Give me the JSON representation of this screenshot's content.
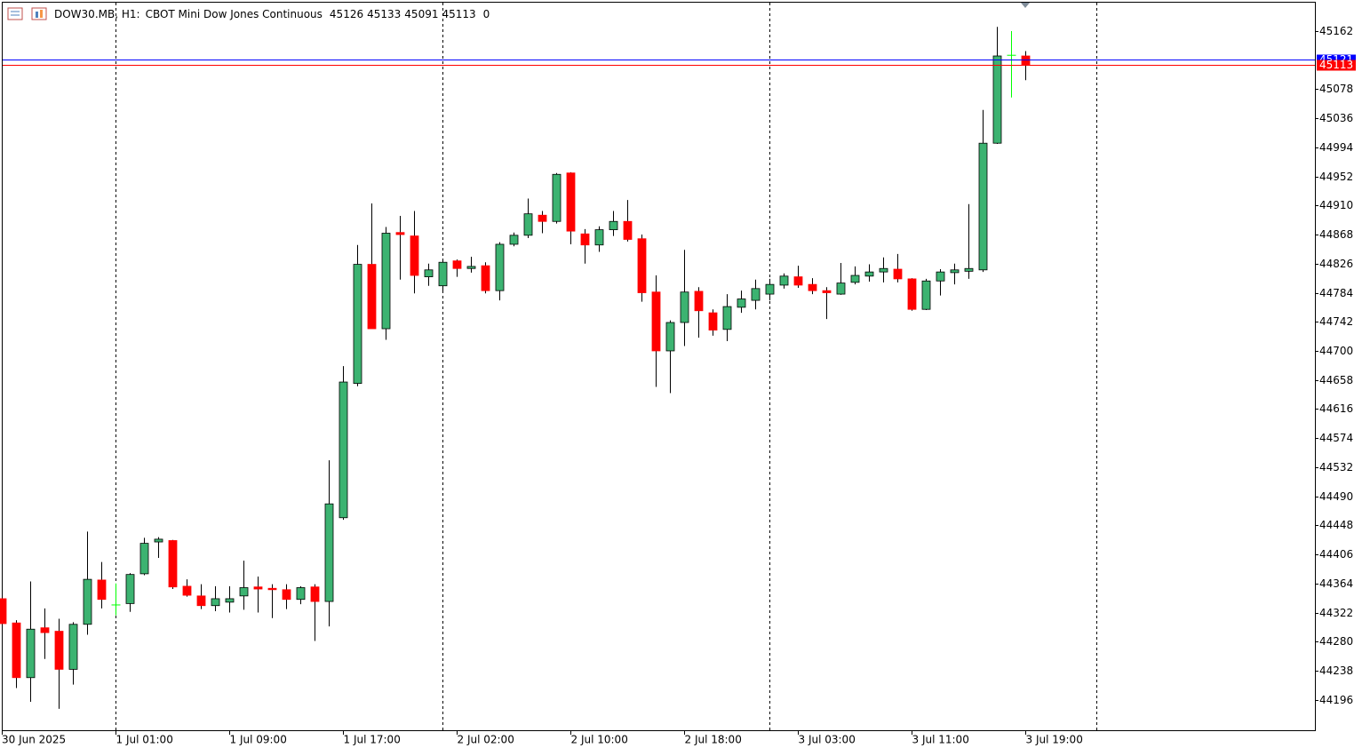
{
  "chart_data": {
    "type": "candlestick",
    "header": {
      "symbol": "DOW30.MB, H1:",
      "description": "CBOT Mini Dow Jones Continuous",
      "ohlc": [
        45126,
        45133,
        45091,
        45113
      ],
      "spread": 0
    },
    "categories": [
      "30 Jun 2025",
      null,
      null,
      null,
      null,
      null,
      null,
      null,
      "1 Jul 01:00",
      null,
      null,
      null,
      null,
      null,
      null,
      null,
      "1 Jul 09:00",
      null,
      null,
      null,
      null,
      null,
      null,
      null,
      "1 Jul 17:00",
      null,
      null,
      null,
      null,
      null,
      null,
      null,
      "2 Jul 02:00",
      null,
      null,
      null,
      null,
      null,
      null,
      null,
      "2 Jul 10:00",
      null,
      null,
      null,
      null,
      null,
      null,
      null,
      "2 Jul 18:00",
      null,
      null,
      null,
      null,
      null,
      null,
      null,
      "3 Jul 03:00",
      null,
      null,
      null,
      null,
      null,
      null,
      null,
      "3 Jul 11:00",
      null,
      null,
      null,
      null,
      null,
      null,
      null,
      "3 Jul 19:00"
    ],
    "open": [
      44342,
      44307,
      44228,
      44300,
      44295,
      44240,
      44305,
      44369,
      44333,
      44335,
      44378,
      44424,
      44426,
      44360,
      44346,
      44332,
      44337,
      44346,
      44359,
      44357,
      44355,
      44341,
      44359,
      44338,
      44459,
      44653,
      44825,
      44732,
      44871,
      44866,
      44807,
      44794,
      44830,
      44819,
      44823,
      44787,
      44854,
      44867,
      44896,
      44887,
      44957,
      44869,
      44853,
      44875,
      44887,
      44862,
      44785,
      44700,
      44741,
      44786,
      44755,
      44731,
      44763,
      44773,
      44782,
      44795,
      44807,
      44796,
      44787,
      44782,
      44799,
      44808,
      44814,
      44818,
      44804,
      44760,
      44801,
      44813,
      44815,
      44817,
      45000,
      45127,
      45126
    ],
    "high": [
      44342,
      44311,
      44367,
      44328,
      44313,
      44308,
      44439,
      44395,
      44364,
      44379,
      44430,
      44431,
      44427,
      44370,
      44363,
      44360,
      44360,
      44397,
      44374,
      44363,
      44363,
      44360,
      44363,
      44542,
      44678,
      44853,
      44913,
      44879,
      44895,
      44902,
      44826,
      44830,
      44832,
      44836,
      44828,
      44857,
      44871,
      44920,
      44902,
      44957,
      44958,
      44876,
      44880,
      44902,
      44918,
      44868,
      44809,
      44744,
      44846,
      44792,
      44760,
      44782,
      44787,
      44803,
      44804,
      44812,
      44823,
      44805,
      44792,
      44827,
      44822,
      44825,
      44835,
      44840,
      44805,
      44804,
      44818,
      44826,
      44912,
      45048,
      45168,
      45162,
      45133
    ],
    "low": [
      44306,
      44213,
      44193,
      44255,
      44183,
      44218,
      44290,
      44328,
      44318,
      44323,
      44376,
      44401,
      44356,
      44345,
      44327,
      44324,
      44322,
      44326,
      44322,
      44314,
      44327,
      44334,
      44281,
      44302,
      44456,
      44649,
      44732,
      44716,
      44803,
      44783,
      44794,
      44785,
      44807,
      44813,
      44783,
      44773,
      44851,
      44863,
      44870,
      44884,
      44854,
      44826,
      44843,
      44866,
      44858,
      44771,
      44648,
      44639,
      44707,
      44719,
      44722,
      44714,
      44755,
      44760,
      44773,
      44790,
      44791,
      44782,
      44746,
      44781,
      44796,
      44800,
      44799,
      44799,
      44758,
      44759,
      44780,
      44796,
      44804,
      44814,
      44999,
      45066,
      45091
    ],
    "close": [
      44306,
      44228,
      44298,
      44293,
      44240,
      44305,
      44370,
      44341,
      44333,
      44377,
      44422,
      44428,
      44359,
      44347,
      44332,
      44342,
      44342,
      44358,
      44356,
      44355,
      44341,
      44358,
      44338,
      44479,
      44655,
      44825,
      44732,
      44870,
      44868,
      44809,
      44817,
      44828,
      44819,
      44822,
      44787,
      44854,
      44867,
      44898,
      44887,
      44955,
      44873,
      44853,
      44875,
      44887,
      44861,
      44784,
      44700,
      44741,
      44785,
      44758,
      44730,
      44764,
      44775,
      44790,
      44796,
      44808,
      44795,
      44787,
      44784,
      44798,
      44809,
      44814,
      44819,
      44804,
      44760,
      44801,
      44814,
      44817,
      44819,
      45000,
      45126,
      45127,
      45113
    ],
    "up_color": "#3cb371",
    "down_color": "#ff0000",
    "doji_color": "#00ff00",
    "ylim": [
      44152,
      45203
    ],
    "yticks": [
      44196,
      44238,
      44280,
      44322,
      44364,
      44406,
      44448,
      44490,
      44532,
      44574,
      44616,
      44658,
      44700,
      44742,
      44784,
      44826,
      44868,
      44910,
      44952,
      44994,
      45036,
      45078,
      45162
    ],
    "price_lines": [
      {
        "value": 45121,
        "color": "#0000ff"
      },
      {
        "value": 45113,
        "color": "#ff0000"
      }
    ]
  }
}
